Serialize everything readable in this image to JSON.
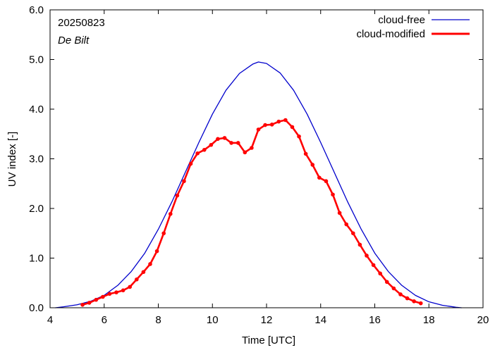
{
  "chart_data": {
    "type": "line",
    "xlabel": "Time  [UTC]",
    "ylabel": "UV index  [-]",
    "xlim": [
      4,
      20
    ],
    "ylim": [
      0,
      6
    ],
    "xticks": [
      4,
      6,
      8,
      10,
      12,
      14,
      16,
      18,
      20
    ],
    "xtick_labels": [
      "4",
      "6",
      "8",
      "10",
      "12",
      "14",
      "16",
      "18",
      "20"
    ],
    "yticks": [
      0,
      1,
      2,
      3,
      4,
      5,
      6
    ],
    "ytick_labels": [
      "0.0",
      "1.0",
      "2.0",
      "3.0",
      "4.0",
      "5.0",
      "6.0"
    ],
    "grid": false,
    "legend_position": "top-right",
    "annotations": {
      "date": "20250823",
      "location": "De Bilt"
    },
    "series": [
      {
        "name": "cloud-free",
        "color": "#0000cc",
        "markers": false,
        "x": [
          4.2,
          4.5,
          5.0,
          5.5,
          6.0,
          6.5,
          7.0,
          7.5,
          8.0,
          8.5,
          9.0,
          9.5,
          10.0,
          10.5,
          11.0,
          11.5,
          11.7,
          12.0,
          12.5,
          13.0,
          13.5,
          14.0,
          14.5,
          15.0,
          15.5,
          16.0,
          16.5,
          17.0,
          17.5,
          18.0,
          18.5,
          19.0,
          19.2
        ],
        "y": [
          0.0,
          0.02,
          0.06,
          0.13,
          0.25,
          0.45,
          0.73,
          1.1,
          1.58,
          2.13,
          2.73,
          3.33,
          3.9,
          4.38,
          4.72,
          4.91,
          4.95,
          4.92,
          4.73,
          4.38,
          3.9,
          3.33,
          2.73,
          2.13,
          1.58,
          1.1,
          0.73,
          0.45,
          0.25,
          0.12,
          0.05,
          0.01,
          0.0
        ]
      },
      {
        "name": "cloud-modified",
        "color": "#ff0000",
        "markers": true,
        "x": [
          5.2,
          5.45,
          5.7,
          5.95,
          6.2,
          6.45,
          6.7,
          6.95,
          7.2,
          7.45,
          7.7,
          7.95,
          8.2,
          8.45,
          8.7,
          8.95,
          9.2,
          9.45,
          9.7,
          9.95,
          10.2,
          10.45,
          10.7,
          10.95,
          11.2,
          11.45,
          11.7,
          11.95,
          12.2,
          12.45,
          12.7,
          12.95,
          13.2,
          13.45,
          13.7,
          13.95,
          14.2,
          14.45,
          14.7,
          14.95,
          15.2,
          15.45,
          15.7,
          15.95,
          16.2,
          16.45,
          16.7,
          16.95,
          17.2,
          17.45,
          17.7
        ],
        "y": [
          0.06,
          0.1,
          0.16,
          0.22,
          0.28,
          0.31,
          0.35,
          0.42,
          0.57,
          0.72,
          0.88,
          1.14,
          1.5,
          1.89,
          2.26,
          2.55,
          2.9,
          3.11,
          3.18,
          3.28,
          3.4,
          3.42,
          3.32,
          3.32,
          3.13,
          3.22,
          3.59,
          3.68,
          3.69,
          3.75,
          3.78,
          3.64,
          3.45,
          3.1,
          2.88,
          2.62,
          2.55,
          2.28,
          1.91,
          1.68,
          1.5,
          1.27,
          1.05,
          0.86,
          0.69,
          0.52,
          0.39,
          0.27,
          0.19,
          0.13,
          0.09
        ]
      }
    ]
  }
}
